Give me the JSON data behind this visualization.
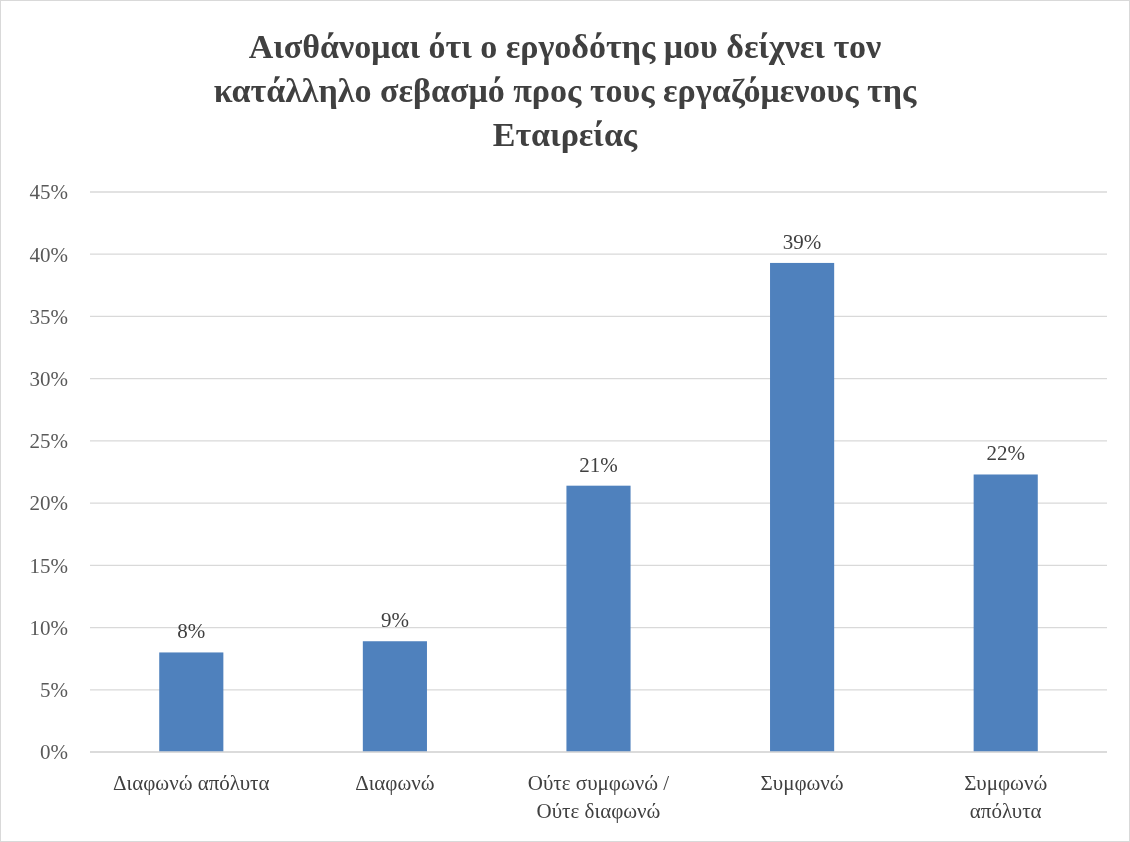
{
  "chart_data": {
    "type": "bar",
    "title": "Αισθάνομαι ότι ο εργοδότης μου δείχνει τον κατάλληλο σεβασμό προς τους εργαζόμενους της Εταιρείας",
    "categories": [
      "Διαφωνώ απόλυτα",
      "Διαφωνώ",
      "Ούτε συμφωνώ / Ούτε διαφωνώ",
      "Συμφωνώ",
      "Συμφωνώ απόλυτα"
    ],
    "values": [
      8.0,
      8.9,
      21.4,
      39.3,
      22.3
    ],
    "value_labels": [
      "8%",
      "9%",
      "21%",
      "39%",
      "22%"
    ],
    "color": "#4f81bd",
    "ylim": [
      0,
      45
    ],
    "yticks": [
      {
        "value": 0,
        "label": "0%"
      },
      {
        "value": 5,
        "label": "5%"
      },
      {
        "value": 10,
        "label": "10%"
      },
      {
        "value": 15,
        "label": "15%"
      },
      {
        "value": 20,
        "label": "20%"
      },
      {
        "value": 25,
        "label": "25%"
      },
      {
        "value": 30,
        "label": "30%"
      },
      {
        "value": 35,
        "label": "35%"
      },
      {
        "value": 40,
        "label": "40%"
      },
      {
        "value": 45,
        "label": "45%"
      }
    ],
    "grid": "y"
  }
}
